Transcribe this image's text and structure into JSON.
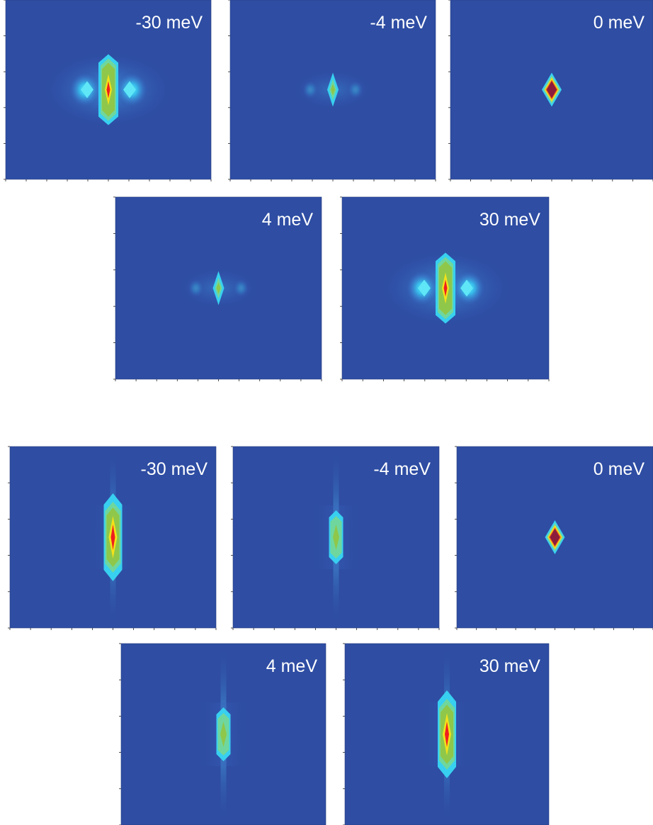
{
  "chart_data": [
    {
      "type": "heatmap",
      "group": "top",
      "colorscale": [
        "#2e4da3",
        "#3a8fd6",
        "#38d0f0",
        "#78d8a0",
        "#8fc74a",
        "#f2e21a",
        "#ef5a1e",
        "#8b1c3c"
      ],
      "panels": [
        {
          "label": "-30 meV",
          "peak": "red",
          "sidelobes": "strong",
          "shape": "elongated-vertical"
        },
        {
          "label": "-4 meV",
          "peak": "green",
          "sidelobes": "faint",
          "shape": "narrow-diamond"
        },
        {
          "label": "0 meV",
          "peak": "dark-red",
          "sidelobes": "none",
          "shape": "diamond"
        },
        {
          "label": "4 meV",
          "peak": "green",
          "sidelobes": "faint",
          "shape": "narrow-diamond"
        },
        {
          "label": "30 meV",
          "peak": "red",
          "sidelobes": "strong",
          "shape": "elongated-vertical"
        }
      ]
    },
    {
      "type": "heatmap",
      "group": "bottom",
      "colorscale": [
        "#2e4da3",
        "#3a8fd6",
        "#38d0f0",
        "#78d8a0",
        "#8fc74a",
        "#f2e21a",
        "#ef5a1e",
        "#8b1c3c"
      ],
      "panels": [
        {
          "label": "-30 meV",
          "peak": "red",
          "sidelobes": "none",
          "shape": "streak-vertical"
        },
        {
          "label": "-4 meV",
          "peak": "green",
          "sidelobes": "none",
          "shape": "streak-vertical"
        },
        {
          "label": "0 meV",
          "peak": "dark-red",
          "sidelobes": "none",
          "shape": "diamond"
        },
        {
          "label": "4 meV",
          "peak": "green",
          "sidelobes": "none",
          "shape": "streak-vertical"
        },
        {
          "label": "30 meV",
          "peak": "red",
          "sidelobes": "none",
          "shape": "streak-vertical"
        }
      ]
    }
  ]
}
